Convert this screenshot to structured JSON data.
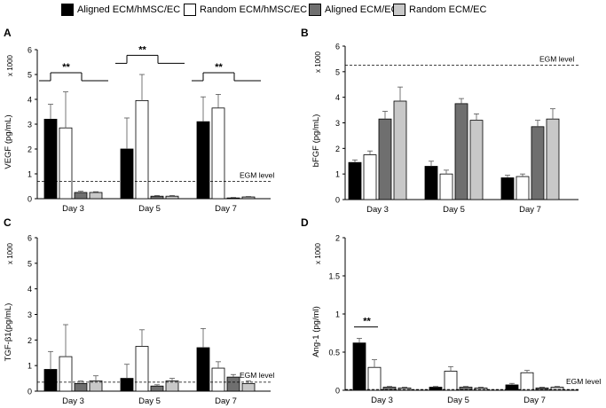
{
  "legend": [
    {
      "label": "Aligned ECM/hMSC/EC",
      "color": "#000000"
    },
    {
      "label": "Random  ECM/hMSC/EC",
      "color": "#ffffff"
    },
    {
      "label": "Aligned ECM/EC",
      "color": "#6f6f6f"
    },
    {
      "label": "Random  ECM/EC",
      "color": "#c8c8c8"
    }
  ],
  "chart_data": [
    {
      "type": "bar",
      "panel": "A",
      "ylabel": "VEGF  (pg/mL)",
      "scale_label": "x 1000",
      "categories": [
        "Day 3",
        "Day 5",
        "Day 7"
      ],
      "yticks": [
        "0",
        "1",
        "2",
        "3",
        "4",
        "5",
        "6"
      ],
      "ylim": [
        0,
        6
      ],
      "reference": {
        "value": 0.7,
        "label": "EGM level"
      },
      "series": [
        {
          "name": "Aligned ECM/hMSC/EC",
          "values": [
            3.2,
            2.0,
            3.1
          ],
          "errors": [
            0.6,
            1.25,
            1.0
          ]
        },
        {
          "name": "Random  ECM/hMSC/EC",
          "values": [
            2.85,
            3.95,
            3.65
          ],
          "errors": [
            1.45,
            1.05,
            0.55
          ]
        },
        {
          "name": "Aligned ECM/EC",
          "values": [
            0.25,
            0.1,
            0.03
          ],
          "errors": [
            0.05,
            0.03,
            0.02
          ]
        },
        {
          "name": "Random  ECM/EC",
          "values": [
            0.25,
            0.1,
            0.07
          ],
          "errors": [
            0.03,
            0.03,
            0.02
          ]
        }
      ],
      "significance": [
        {
          "day": 0,
          "level_value": 4.75,
          "label": "**"
        },
        {
          "day": 1,
          "level_value": 5.45,
          "label": "**"
        },
        {
          "day": 2,
          "level_value": 4.75,
          "label": "**"
        }
      ]
    },
    {
      "type": "bar",
      "panel": "B",
      "ylabel": "bFGF  (pg/mL)",
      "scale_label": "x 1000",
      "categories": [
        "Day 3",
        "Day 5",
        "Day 7"
      ],
      "yticks": [
        "0",
        "1",
        "2",
        "3",
        "4",
        "5",
        "6"
      ],
      "ylim": [
        0,
        6
      ],
      "reference": {
        "value": 5.25,
        "label": "EGM level"
      },
      "series": [
        {
          "name": "Aligned ECM/hMSC/EC",
          "values": [
            1.45,
            1.3,
            0.85
          ],
          "errors": [
            0.1,
            0.2,
            0.1
          ]
        },
        {
          "name": "Random  ECM/hMSC/EC",
          "values": [
            1.75,
            1.0,
            0.9
          ],
          "errors": [
            0.15,
            0.15,
            0.1
          ]
        },
        {
          "name": "Aligned ECM/EC",
          "values": [
            3.15,
            3.75,
            2.85
          ],
          "errors": [
            0.3,
            0.2,
            0.25
          ]
        },
        {
          "name": "Random  ECM/EC",
          "values": [
            3.85,
            3.1,
            3.15
          ],
          "errors": [
            0.55,
            0.25,
            0.4
          ]
        }
      ],
      "significance": []
    },
    {
      "type": "bar",
      "panel": "C",
      "ylabel": "TGF-β1(pg/mL)",
      "scale_label": "x 1000",
      "categories": [
        "Day 3",
        "Day 5",
        "Day 7"
      ],
      "yticks": [
        "0",
        "1",
        "2",
        "3",
        "4",
        "5",
        "6"
      ],
      "ylim": [
        0,
        6
      ],
      "reference": {
        "value": 0.35,
        "label": "EGM level"
      },
      "series": [
        {
          "name": "Aligned ECM/hMSC/EC",
          "values": [
            0.85,
            0.5,
            1.7
          ],
          "errors": [
            0.7,
            0.55,
            0.75
          ]
        },
        {
          "name": "Random  ECM/hMSC/EC",
          "values": [
            1.35,
            1.75,
            0.9
          ],
          "errors": [
            1.25,
            0.65,
            0.25
          ]
        },
        {
          "name": "Aligned ECM/EC",
          "values": [
            0.3,
            0.2,
            0.55
          ],
          "errors": [
            0.1,
            0.05,
            0.1
          ]
        },
        {
          "name": "Random  ECM/EC",
          "values": [
            0.4,
            0.4,
            0.3
          ],
          "errors": [
            0.2,
            0.1,
            0.1
          ]
        }
      ],
      "significance": []
    },
    {
      "type": "bar",
      "panel": "D",
      "ylabel": "Ang-1  (pg/ml)",
      "scale_label": "x 1000",
      "categories": [
        "Day 3",
        "Day 5",
        "Day 7"
      ],
      "yticks": [
        "0",
        "0.5",
        "1",
        "1.5",
        "2"
      ],
      "ylim": [
        0,
        2
      ],
      "reference": {
        "value": 0.01,
        "label": "EGM level"
      },
      "series": [
        {
          "name": "Aligned ECM/hMSC/EC",
          "values": [
            0.62,
            0.04,
            0.07
          ],
          "errors": [
            0.06,
            0.01,
            0.02
          ]
        },
        {
          "name": "Random  ECM/hMSC/EC",
          "values": [
            0.3,
            0.25,
            0.23
          ],
          "errors": [
            0.1,
            0.06,
            0.03
          ]
        },
        {
          "name": "Aligned ECM/EC",
          "values": [
            0.04,
            0.04,
            0.03
          ],
          "errors": [
            0.01,
            0.01,
            0.01
          ]
        },
        {
          "name": "Random  ECM/EC",
          "values": [
            0.03,
            0.03,
            0.04
          ],
          "errors": [
            0.01,
            0.01,
            0.01
          ]
        }
      ],
      "significance": [
        {
          "day": 0,
          "level_value": 0.83,
          "label": "**"
        }
      ]
    }
  ]
}
